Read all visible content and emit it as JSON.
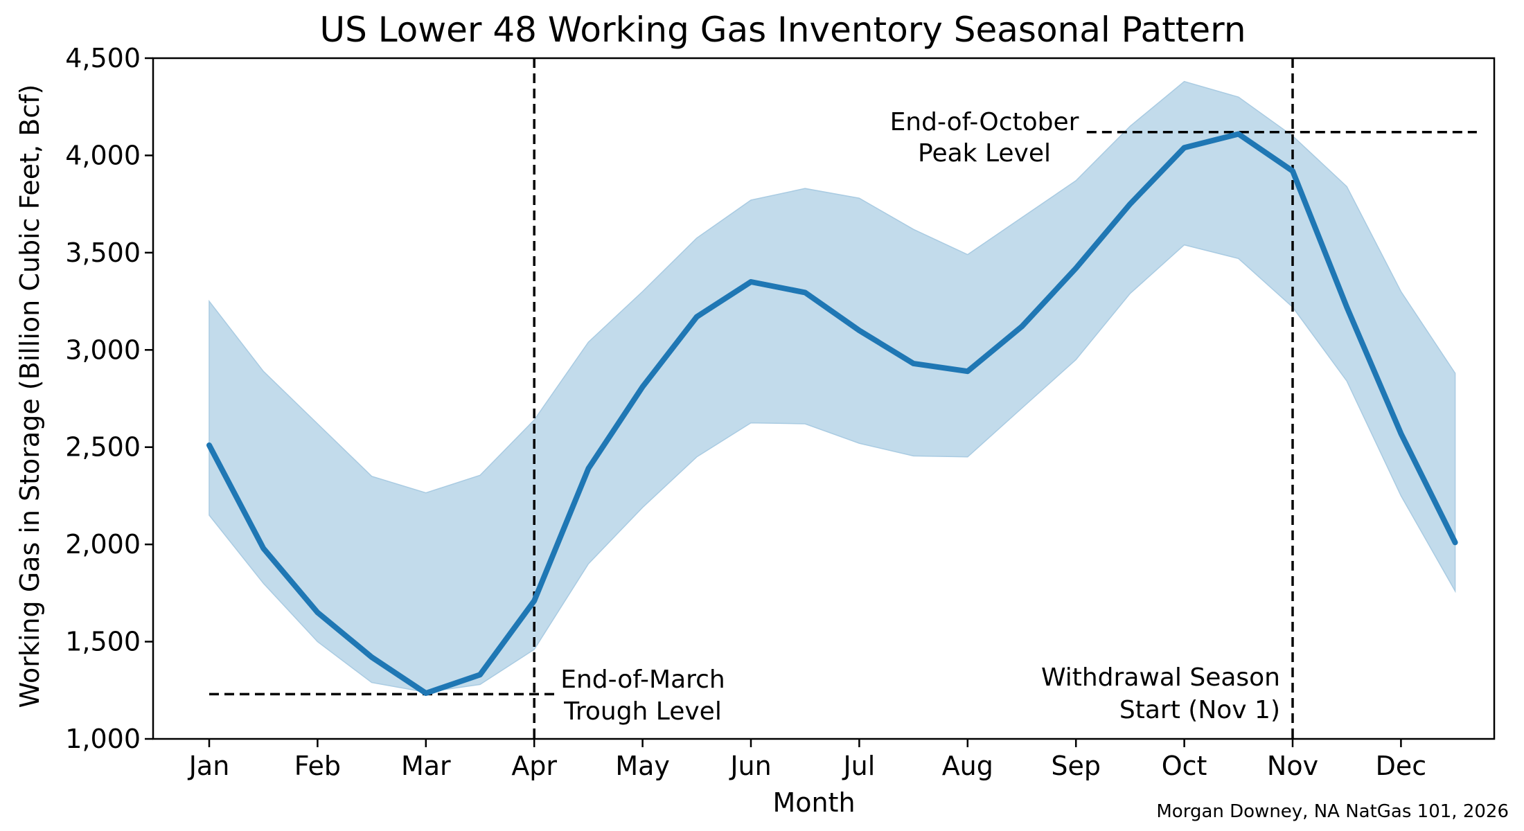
{
  "chart_data": {
    "type": "line",
    "title": "US Lower 48 Working Gas Inventory Seasonal Pattern",
    "xlabel": "Month",
    "ylabel": "Working Gas in Storage (Billion Cubic Feet, Bcf)",
    "credit": "Morgan Downey, NA NatGas 101, 2026",
    "categories": [
      "Jan",
      "Feb",
      "Mar",
      "Apr",
      "May",
      "Jun",
      "Jul",
      "Aug",
      "Sep",
      "Oct",
      "Nov",
      "Dec"
    ],
    "ylim": [
      1000,
      4500
    ],
    "yticks": [
      1000,
      1500,
      2000,
      2500,
      3000,
      3500,
      4000,
      4500
    ],
    "ytick_labels": [
      "1,000",
      "1,500",
      "2,000",
      "2,500",
      "3,000",
      "3,500",
      "4,000",
      "4,500"
    ],
    "x": [
      0,
      0.5,
      1,
      1.5,
      2,
      2.5,
      3,
      3.5,
      4,
      4.5,
      5,
      5.5,
      6,
      6.5,
      7,
      7.5,
      8,
      8.5,
      9,
      9.5,
      10,
      10.5,
      11,
      11.5
    ],
    "series": [
      {
        "values": [
          2510,
          1980,
          1650,
          1420,
          1235,
          1330,
          1710,
          2390,
          2810,
          3170,
          3350,
          3295,
          3100,
          2930,
          2890,
          3120,
          3420,
          3750,
          4040,
          4110,
          3920,
          3220,
          2570,
          2010
        ],
        "band_low": [
          2150,
          1800,
          1500,
          1290,
          1240,
          1280,
          1460,
          1900,
          2190,
          2450,
          2625,
          2620,
          2520,
          2455,
          2450,
          2700,
          2950,
          3290,
          3540,
          3470,
          3220,
          2840,
          2250,
          1760
        ],
        "band_high": [
          3250,
          2890,
          2620,
          2350,
          2265,
          2355,
          2640,
          3040,
          3300,
          3575,
          3770,
          3830,
          3780,
          3620,
          3490,
          3680,
          3870,
          4150,
          4380,
          4300,
          4100,
          3840,
          3300,
          2880
        ],
        "color": "#1f77b4",
        "band_color": "#c2dbeb"
      }
    ],
    "reference_lines": [
      {
        "orientation": "vertical",
        "x": 3,
        "style": "dashed"
      },
      {
        "orientation": "vertical",
        "x": 10,
        "style": "dashed"
      },
      {
        "orientation": "horizontal",
        "y": 1230,
        "x_range": [
          0,
          3.2
        ],
        "style": "dashed"
      },
      {
        "orientation": "horizontal",
        "y": 4120,
        "x_range": [
          8.1,
          11.7
        ],
        "style": "dashed"
      }
    ],
    "annotations": [
      {
        "lines": [
          "End-of-March",
          "Trough Level"
        ]
      },
      {
        "lines": [
          "End-of-October",
          "Peak Level"
        ]
      },
      {
        "lines": [
          "Withdrawal Season",
          "Start (Nov 1)"
        ]
      }
    ],
    "grid": false,
    "legend": "none"
  }
}
